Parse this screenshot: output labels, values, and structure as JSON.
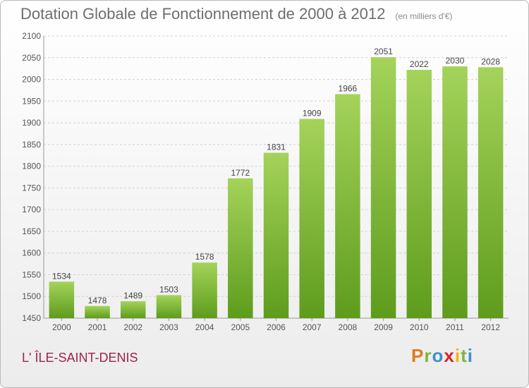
{
  "title": "Dotation Globale de Fonctionnement de 2000 à 2012",
  "unit": "(en milliers d'€)",
  "place": "L' ÎLE-SAINT-DENIS",
  "logo": {
    "text": "Proxiti",
    "colors": [
      "#e07a22",
      "#7cb740",
      "#3b8fd1",
      "#d6242a",
      "#f2b705",
      "#7cb740",
      "#3b8fd1"
    ]
  },
  "chart_data": {
    "type": "bar",
    "title": "Dotation Globale de Fonctionnement de 2000 à 2012",
    "subtitle": "(en milliers d'€)",
    "categories": [
      "2000",
      "2001",
      "2002",
      "2003",
      "2004",
      "2005",
      "2006",
      "2007",
      "2008",
      "2009",
      "2010",
      "2011",
      "2012"
    ],
    "values": [
      1534,
      1478,
      1489,
      1503,
      1578,
      1772,
      1831,
      1909,
      1966,
      2051,
      2022,
      2030,
      2028
    ],
    "ylim": [
      1450,
      2100
    ],
    "yticks": [
      1450,
      1500,
      1550,
      1600,
      1650,
      1700,
      1750,
      1800,
      1850,
      1900,
      1950,
      2000,
      2050,
      2100
    ],
    "grid": true,
    "bar_color_top": "#a4d35a",
    "bar_color_bottom": "#5e9c1c"
  }
}
